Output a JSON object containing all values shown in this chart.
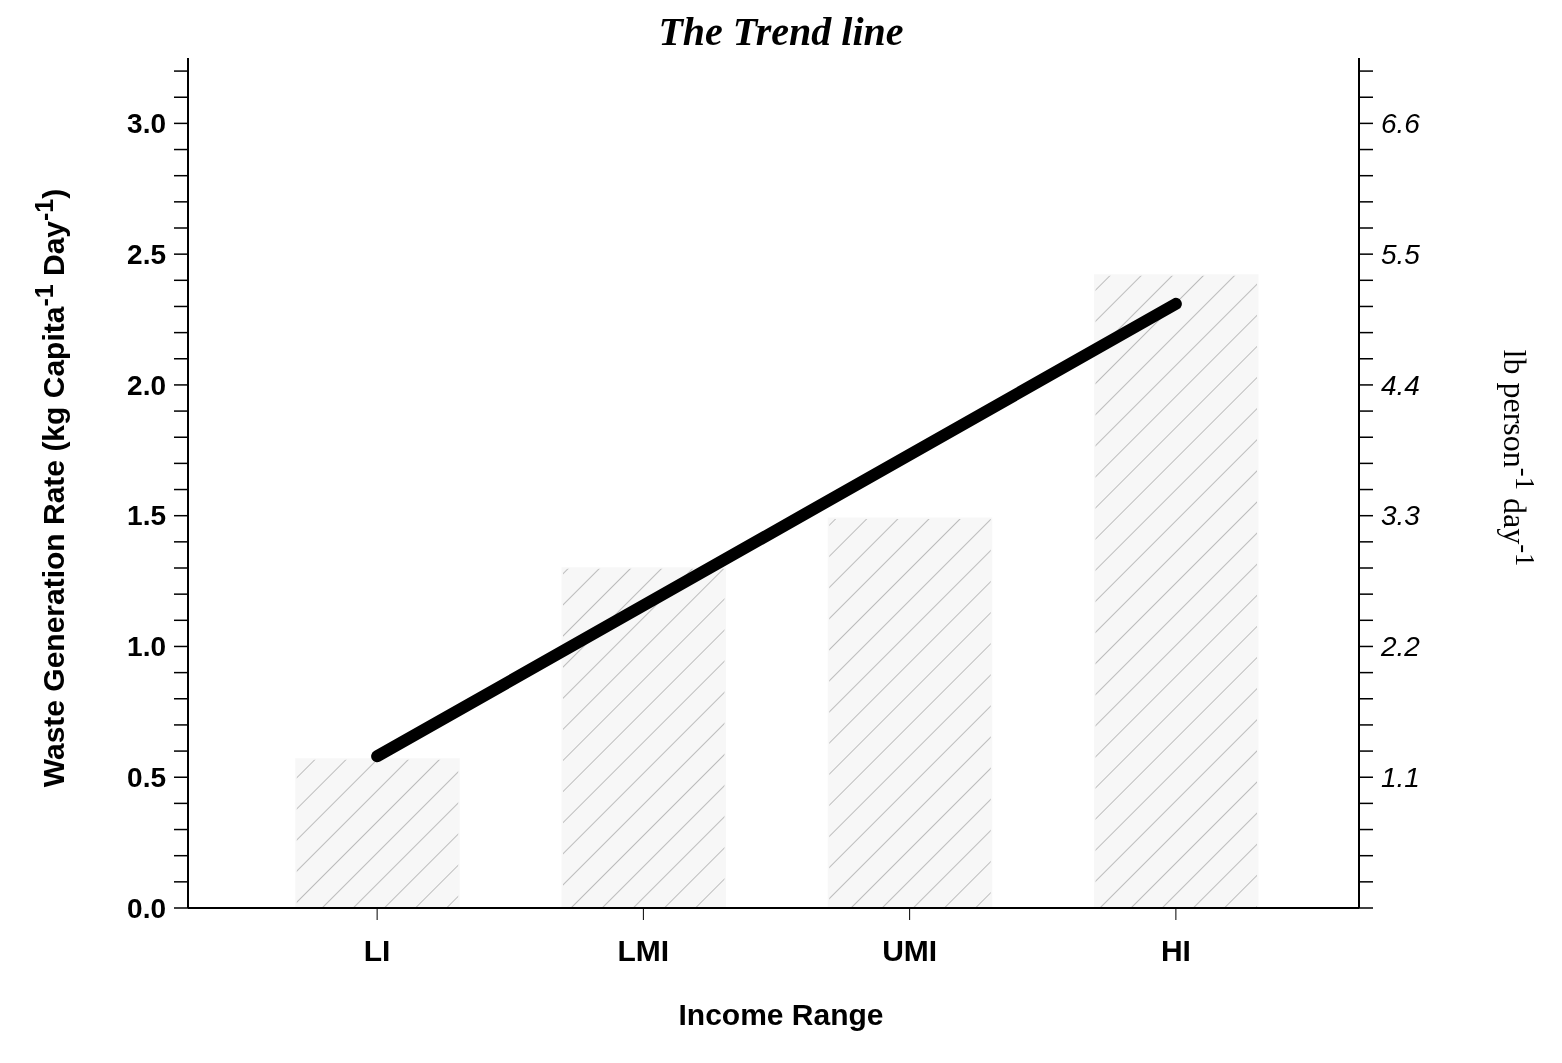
{
  "chart_data": {
    "type": "bar",
    "title": "The Trend line",
    "xlabel": "Income Range",
    "ylabel": "Waste Generation Rate (kg Capita$^{-1}$ Day$^{-1}$)",
    "y2label": "lb person$^{-1}$ day$^{-1}$",
    "categories": [
      "LI",
      "LMI",
      "UMI",
      "HI"
    ],
    "series": [
      {
        "color": "#f7f7f7",
        "values": [
          0.57,
          1.3,
          1.49,
          2.42
        ]
      },
      {
        "type": "line",
        "color": "#000000",
        "x": [
          "LI",
          "HI"
        ],
        "values": [
          0.58,
          2.31
        ]
      }
    ],
    "ylim": [
      0,
      3.25
    ],
    "yticks": [
      {
        "value": 0,
        "label": "0.0"
      },
      {
        "value": 0.1,
        "label": null
      },
      {
        "value": 0.2,
        "label": null
      },
      {
        "value": 0.3,
        "label": null
      },
      {
        "value": 0.4,
        "label": null
      },
      {
        "value": 0.5,
        "label": "0.5"
      },
      {
        "value": 0.6,
        "label": null
      },
      {
        "value": 0.7,
        "label": null
      },
      {
        "value": 0.8,
        "label": null
      },
      {
        "value": 0.9,
        "label": null
      },
      {
        "value": 1,
        "label": "1.0"
      },
      {
        "value": 1.1,
        "label": null
      },
      {
        "value": 1.2,
        "label": null
      },
      {
        "value": 1.3,
        "label": null
      },
      {
        "value": 1.4,
        "label": null
      },
      {
        "value": 1.5,
        "label": "1.5"
      },
      {
        "value": 1.6,
        "label": null
      },
      {
        "value": 1.7,
        "label": null
      },
      {
        "value": 1.8,
        "label": null
      },
      {
        "value": 1.9,
        "label": null
      },
      {
        "value": 2,
        "label": "2.0"
      },
      {
        "value": 2.1,
        "label": null
      },
      {
        "value": 2.2,
        "label": null
      },
      {
        "value": 2.3,
        "label": null
      },
      {
        "value": 2.4,
        "label": null
      },
      {
        "value": 2.5,
        "label": "2.5"
      },
      {
        "value": 2.6,
        "label": null
      },
      {
        "value": 2.7,
        "label": null
      },
      {
        "value": 2.8,
        "label": null
      },
      {
        "value": 2.9,
        "label": null
      },
      {
        "value": 3,
        "label": "3.0"
      },
      {
        "value": 3.1,
        "label": null
      },
      {
        "value": 3.2,
        "label": null
      }
    ],
    "y2lim": [
      0,
      7.15
    ],
    "y2ticks": [
      {
        "value": 0,
        "label": null
      },
      {
        "value": 0.22,
        "label": null
      },
      {
        "value": 0.44,
        "label": null
      },
      {
        "value": 0.66,
        "label": null
      },
      {
        "value": 0.88,
        "label": null
      },
      1.1,
      {
        "value": 1.32,
        "label": null
      },
      {
        "value": 1.54,
        "label": null
      },
      {
        "value": 1.76,
        "label": null
      },
      {
        "value": 1.98,
        "label": null
      },
      2.2,
      {
        "value": 2.42,
        "label": null
      },
      {
        "value": 2.64,
        "label": null
      },
      {
        "value": 2.86,
        "label": null
      },
      {
        "value": 3.08,
        "label": null
      },
      3.3,
      {
        "value": 3.52,
        "label": null
      },
      {
        "value": 3.74,
        "label": null
      },
      {
        "value": 3.96,
        "label": null
      },
      {
        "value": 4.18,
        "label": null
      },
      4.4,
      {
        "value": 4.62,
        "label": null
      },
      {
        "value": 4.84,
        "label": null
      },
      {
        "value": 5.06,
        "label": null
      },
      {
        "value": 5.28,
        "label": null
      },
      5.5,
      {
        "value": 5.72,
        "label": null
      },
      {
        "value": 5.94,
        "label": null
      },
      {
        "value": 6.16,
        "label": null
      },
      {
        "value": 6.38,
        "label": null
      },
      6.6,
      {
        "value": 6.82,
        "label": null
      },
      {
        "value": 7.04,
        "label": null
      }
    ],
    "grid": false,
    "legend": false
  }
}
